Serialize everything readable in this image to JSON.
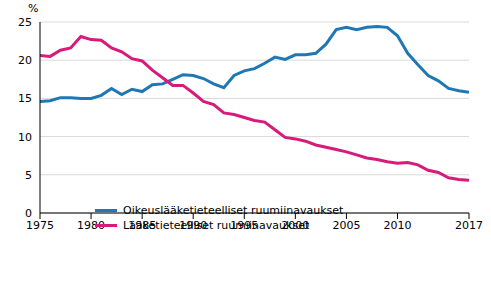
{
  "chart_data": {
    "type": "line",
    "y_label": "%",
    "x": [
      1975,
      1976,
      1977,
      1978,
      1979,
      1980,
      1981,
      1982,
      1983,
      1984,
      1985,
      1986,
      1987,
      1988,
      1989,
      1990,
      1991,
      1992,
      1993,
      1994,
      1995,
      1996,
      1997,
      1998,
      1999,
      2000,
      2001,
      2002,
      2003,
      2004,
      2005,
      2006,
      2007,
      2008,
      2009,
      2010,
      2011,
      2012,
      2013,
      2014,
      2015,
      2016,
      2017
    ],
    "series": [
      {
        "name": "Oikeuslääketieteelliset ruumiinavaukset",
        "color": "#1f78b4",
        "values": [
          14.6,
          14.7,
          15.1,
          15.1,
          15.0,
          15.0,
          15.4,
          16.3,
          15.5,
          16.2,
          15.9,
          16.8,
          16.9,
          17.5,
          18.1,
          18.0,
          17.6,
          16.9,
          16.4,
          18.0,
          18.6,
          18.9,
          19.6,
          20.4,
          20.1,
          20.7,
          20.7,
          20.9,
          22.1,
          24.0,
          24.3,
          24.0,
          24.3,
          24.4,
          24.3,
          23.2,
          20.9,
          19.4,
          18.0,
          17.3,
          16.3,
          16.0,
          15.8
        ]
      },
      {
        "name": "Lääketieteelliset ruumiinavaukset",
        "color": "#d61b7b",
        "values": [
          20.6,
          20.5,
          21.3,
          21.6,
          23.1,
          22.7,
          22.6,
          21.6,
          21.1,
          20.2,
          19.9,
          18.7,
          17.7,
          16.7,
          16.7,
          15.7,
          14.6,
          14.2,
          13.1,
          12.9,
          12.5,
          12.1,
          11.9,
          10.9,
          9.9,
          9.7,
          9.4,
          8.9,
          8.6,
          8.3,
          8.0,
          7.6,
          7.2,
          7.0,
          6.7,
          6.5,
          6.6,
          6.3,
          5.6,
          5.3,
          4.6,
          4.4,
          4.3
        ]
      }
    ],
    "xlim": [
      1975,
      2017
    ],
    "xticks": [
      1975,
      1980,
      1985,
      1990,
      1995,
      2000,
      2005,
      2010,
      2017
    ],
    "ylim": [
      0,
      25
    ],
    "yticks": [
      0,
      5,
      10,
      15,
      20,
      25
    ],
    "grid": true,
    "legend": "lower left"
  }
}
